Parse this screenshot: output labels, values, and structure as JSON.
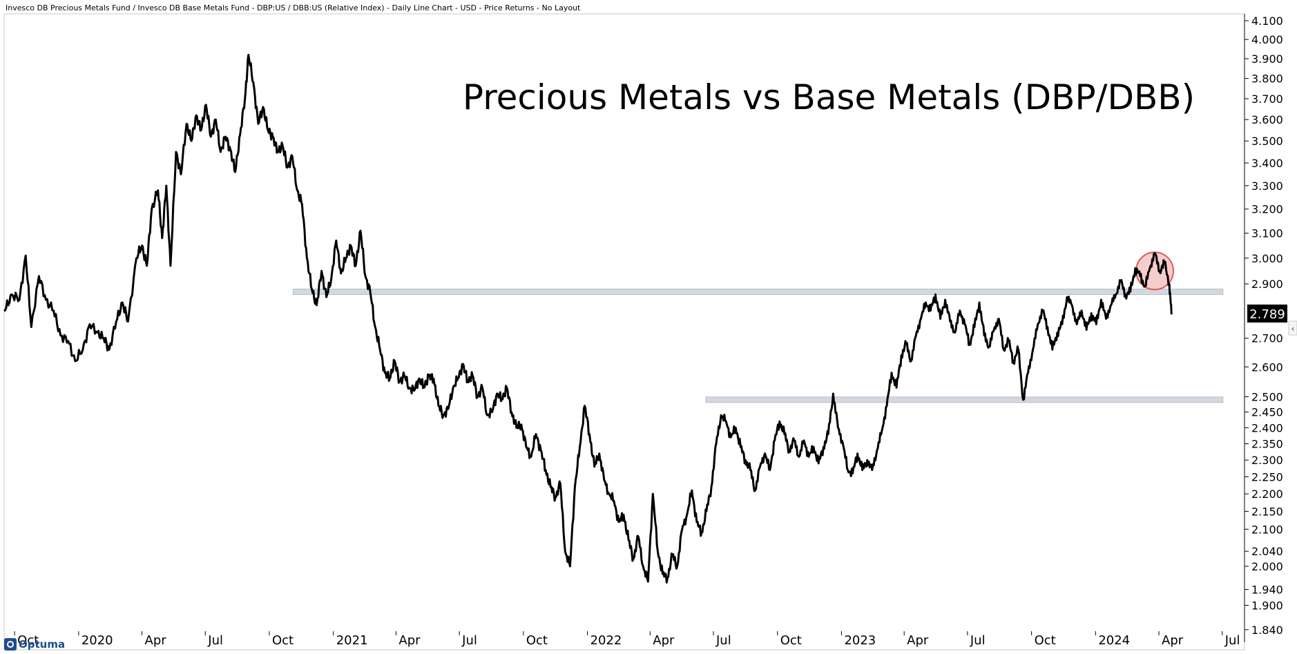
{
  "header": {
    "description": "Invesco DB Precious Metals Fund / Invesco DB Base Metals Fund - DBP:US / DBB:US (Relative Index) - Daily Line Chart - USD - Price Returns - No Layout"
  },
  "logo": {
    "text": "Optuma"
  },
  "chart_data": {
    "type": "line",
    "title": "Precious Metals vs Base Metals (DBP/DBB)",
    "xlabel": "",
    "ylabel": "",
    "yscale": "log",
    "ylim": [
      1.84,
      4.1
    ],
    "xlim": [
      "2019-09-16",
      "2024-07-31"
    ],
    "grid": false,
    "y_ticks": [
      "4.100",
      "4.000",
      "3.900",
      "3.800",
      "3.700",
      "3.600",
      "3.500",
      "3.400",
      "3.300",
      "3.200",
      "3.100",
      "3.000",
      "2.900",
      "2.700",
      "2.600",
      "2.500",
      "2.450",
      "2.400",
      "2.350",
      "2.300",
      "2.250",
      "2.200",
      "2.150",
      "2.100",
      "2.040",
      "2.000",
      "1.940",
      "1.900",
      "1.840"
    ],
    "x_ticks": [
      {
        "label": "Oct",
        "date": "2019-10-01"
      },
      {
        "label": "2020",
        "date": "2020-01-01"
      },
      {
        "label": "Apr",
        "date": "2020-04-01"
      },
      {
        "label": "Jul",
        "date": "2020-07-01"
      },
      {
        "label": "Oct",
        "date": "2020-10-01"
      },
      {
        "label": "2021",
        "date": "2021-01-01"
      },
      {
        "label": "Apr",
        "date": "2021-04-01"
      },
      {
        "label": "Jul",
        "date": "2021-07-01"
      },
      {
        "label": "Oct",
        "date": "2021-10-01"
      },
      {
        "label": "2022",
        "date": "2022-01-01"
      },
      {
        "label": "Apr",
        "date": "2022-04-01"
      },
      {
        "label": "Jul",
        "date": "2022-07-01"
      },
      {
        "label": "Oct",
        "date": "2022-10-01"
      },
      {
        "label": "2023",
        "date": "2023-01-01"
      },
      {
        "label": "Apr",
        "date": "2023-04-01"
      },
      {
        "label": "Jul",
        "date": "2023-07-01"
      },
      {
        "label": "Oct",
        "date": "2023-10-01"
      },
      {
        "label": "2024",
        "date": "2024-01-01"
      },
      {
        "label": "Apr",
        "date": "2024-04-01"
      },
      {
        "label": "Jul",
        "date": "2024-07-01"
      }
    ],
    "last_value_label": "2.789",
    "series": [
      {
        "color": "#000000",
        "points": [
          [
            "2019-09-17",
            2.8
          ],
          [
            "2019-09-27",
            2.86
          ],
          [
            "2019-10-08",
            2.84
          ],
          [
            "2019-10-17",
            3.01
          ],
          [
            "2019-10-25",
            2.74
          ],
          [
            "2019-11-05",
            2.93
          ],
          [
            "2019-11-15",
            2.84
          ],
          [
            "2019-11-26",
            2.8
          ],
          [
            "2019-12-06",
            2.71
          ],
          [
            "2019-12-17",
            2.69
          ],
          [
            "2019-12-27",
            2.62
          ],
          [
            "2020-01-07",
            2.66
          ],
          [
            "2020-01-17",
            2.75
          ],
          [
            "2020-01-28",
            2.72
          ],
          [
            "2020-02-06",
            2.7
          ],
          [
            "2020-02-14",
            2.66
          ],
          [
            "2020-02-24",
            2.76
          ],
          [
            "2020-03-04",
            2.83
          ],
          [
            "2020-03-12",
            2.76
          ],
          [
            "2020-03-24",
            3.0
          ],
          [
            "2020-04-01",
            3.05
          ],
          [
            "2020-04-08",
            2.97
          ],
          [
            "2020-04-15",
            3.2
          ],
          [
            "2020-04-24",
            3.28
          ],
          [
            "2020-04-30",
            3.08
          ],
          [
            "2020-05-06",
            3.3
          ],
          [
            "2020-05-12",
            2.97
          ],
          [
            "2020-05-20",
            3.45
          ],
          [
            "2020-05-27",
            3.35
          ],
          [
            "2020-06-04",
            3.58
          ],
          [
            "2020-06-11",
            3.5
          ],
          [
            "2020-06-18",
            3.62
          ],
          [
            "2020-06-25",
            3.55
          ],
          [
            "2020-07-02",
            3.67
          ],
          [
            "2020-07-09",
            3.52
          ],
          [
            "2020-07-16",
            3.6
          ],
          [
            "2020-07-23",
            3.45
          ],
          [
            "2020-07-30",
            3.52
          ],
          [
            "2020-08-06",
            3.46
          ],
          [
            "2020-08-13",
            3.36
          ],
          [
            "2020-08-20",
            3.53
          ],
          [
            "2020-08-27",
            3.7
          ],
          [
            "2020-09-01",
            3.92
          ],
          [
            "2020-09-08",
            3.78
          ],
          [
            "2020-09-15",
            3.58
          ],
          [
            "2020-09-22",
            3.66
          ],
          [
            "2020-09-29",
            3.55
          ],
          [
            "2020-10-06",
            3.52
          ],
          [
            "2020-10-13",
            3.45
          ],
          [
            "2020-10-20",
            3.48
          ],
          [
            "2020-10-27",
            3.38
          ],
          [
            "2020-11-03",
            3.43
          ],
          [
            "2020-11-10",
            3.28
          ],
          [
            "2020-11-17",
            3.22
          ],
          [
            "2020-11-24",
            3.0
          ],
          [
            "2020-12-01",
            2.88
          ],
          [
            "2020-12-08",
            2.82
          ],
          [
            "2020-12-15",
            2.95
          ],
          [
            "2020-12-22",
            2.85
          ],
          [
            "2020-12-29",
            2.92
          ],
          [
            "2021-01-05",
            3.07
          ],
          [
            "2021-01-12",
            2.94
          ],
          [
            "2021-01-19",
            3.0
          ],
          [
            "2021-01-26",
            3.05
          ],
          [
            "2021-02-02",
            2.97
          ],
          [
            "2021-02-09",
            3.11
          ],
          [
            "2021-02-16",
            2.93
          ],
          [
            "2021-02-23",
            2.87
          ],
          [
            "2021-03-02",
            2.74
          ],
          [
            "2021-03-09",
            2.66
          ],
          [
            "2021-03-16",
            2.58
          ],
          [
            "2021-03-23",
            2.56
          ],
          [
            "2021-03-30",
            2.62
          ],
          [
            "2021-04-06",
            2.55
          ],
          [
            "2021-04-13",
            2.57
          ],
          [
            "2021-04-20",
            2.53
          ],
          [
            "2021-04-27",
            2.52
          ],
          [
            "2021-05-04",
            2.56
          ],
          [
            "2021-05-11",
            2.53
          ],
          [
            "2021-05-18",
            2.57
          ],
          [
            "2021-05-25",
            2.56
          ],
          [
            "2021-06-01",
            2.47
          ],
          [
            "2021-06-08",
            2.44
          ],
          [
            "2021-06-15",
            2.46
          ],
          [
            "2021-06-22",
            2.53
          ],
          [
            "2021-06-29",
            2.56
          ],
          [
            "2021-07-06",
            2.61
          ],
          [
            "2021-07-13",
            2.55
          ],
          [
            "2021-07-20",
            2.57
          ],
          [
            "2021-07-27",
            2.5
          ],
          [
            "2021-08-03",
            2.53
          ],
          [
            "2021-08-10",
            2.44
          ],
          [
            "2021-08-17",
            2.45
          ],
          [
            "2021-08-24",
            2.51
          ],
          [
            "2021-08-31",
            2.49
          ],
          [
            "2021-09-07",
            2.53
          ],
          [
            "2021-09-14",
            2.45
          ],
          [
            "2021-09-21",
            2.4
          ],
          [
            "2021-09-28",
            2.41
          ],
          [
            "2021-10-05",
            2.34
          ],
          [
            "2021-10-12",
            2.31
          ],
          [
            "2021-10-19",
            2.38
          ],
          [
            "2021-10-26",
            2.33
          ],
          [
            "2021-11-02",
            2.27
          ],
          [
            "2021-11-09",
            2.22
          ],
          [
            "2021-11-16",
            2.19
          ],
          [
            "2021-11-23",
            2.23
          ],
          [
            "2021-11-30",
            2.04
          ],
          [
            "2021-12-07",
            2.0
          ],
          [
            "2021-12-14",
            2.22
          ],
          [
            "2021-12-21",
            2.34
          ],
          [
            "2021-12-28",
            2.47
          ],
          [
            "2022-01-04",
            2.38
          ],
          [
            "2022-01-11",
            2.28
          ],
          [
            "2022-01-18",
            2.32
          ],
          [
            "2022-01-25",
            2.24
          ],
          [
            "2022-02-01",
            2.2
          ],
          [
            "2022-02-08",
            2.18
          ],
          [
            "2022-02-15",
            2.12
          ],
          [
            "2022-02-22",
            2.14
          ],
          [
            "2022-03-01",
            2.07
          ],
          [
            "2022-03-08",
            2.02
          ],
          [
            "2022-03-15",
            2.08
          ],
          [
            "2022-03-22",
            2.0
          ],
          [
            "2022-03-29",
            1.96
          ],
          [
            "2022-04-05",
            2.2
          ],
          [
            "2022-04-12",
            2.04
          ],
          [
            "2022-04-19",
            1.98
          ],
          [
            "2022-04-26",
            1.97
          ],
          [
            "2022-05-03",
            2.03
          ],
          [
            "2022-05-10",
            2.0
          ],
          [
            "2022-05-17",
            2.1
          ],
          [
            "2022-05-24",
            2.14
          ],
          [
            "2022-05-31",
            2.21
          ],
          [
            "2022-06-07",
            2.12
          ],
          [
            "2022-06-14",
            2.09
          ],
          [
            "2022-06-21",
            2.15
          ],
          [
            "2022-06-28",
            2.22
          ],
          [
            "2022-07-05",
            2.35
          ],
          [
            "2022-07-12",
            2.44
          ],
          [
            "2022-07-19",
            2.42
          ],
          [
            "2022-07-26",
            2.37
          ],
          [
            "2022-08-02",
            2.4
          ],
          [
            "2022-08-09",
            2.34
          ],
          [
            "2022-08-16",
            2.3
          ],
          [
            "2022-08-23",
            2.27
          ],
          [
            "2022-08-30",
            2.21
          ],
          [
            "2022-09-06",
            2.28
          ],
          [
            "2022-09-13",
            2.32
          ],
          [
            "2022-09-20",
            2.27
          ],
          [
            "2022-09-27",
            2.36
          ],
          [
            "2022-10-04",
            2.42
          ],
          [
            "2022-10-11",
            2.38
          ],
          [
            "2022-10-18",
            2.33
          ],
          [
            "2022-10-25",
            2.36
          ],
          [
            "2022-11-01",
            2.31
          ],
          [
            "2022-11-08",
            2.36
          ],
          [
            "2022-11-15",
            2.31
          ],
          [
            "2022-11-22",
            2.34
          ],
          [
            "2022-11-29",
            2.29
          ],
          [
            "2022-12-06",
            2.34
          ],
          [
            "2022-12-13",
            2.38
          ],
          [
            "2022-12-20",
            2.51
          ],
          [
            "2022-12-27",
            2.4
          ],
          [
            "2023-01-03",
            2.35
          ],
          [
            "2023-01-10",
            2.27
          ],
          [
            "2023-01-17",
            2.26
          ],
          [
            "2023-01-24",
            2.32
          ],
          [
            "2023-01-31",
            2.27
          ],
          [
            "2023-02-07",
            2.3
          ],
          [
            "2023-02-14",
            2.27
          ],
          [
            "2023-02-21",
            2.33
          ],
          [
            "2023-02-28",
            2.39
          ],
          [
            "2023-03-07",
            2.47
          ],
          [
            "2023-03-14",
            2.58
          ],
          [
            "2023-03-21",
            2.53
          ],
          [
            "2023-03-28",
            2.64
          ],
          [
            "2023-04-04",
            2.68
          ],
          [
            "2023-04-11",
            2.62
          ],
          [
            "2023-04-18",
            2.71
          ],
          [
            "2023-04-25",
            2.77
          ],
          [
            "2023-05-02",
            2.83
          ],
          [
            "2023-05-09",
            2.8
          ],
          [
            "2023-05-16",
            2.86
          ],
          [
            "2023-05-23",
            2.77
          ],
          [
            "2023-05-30",
            2.84
          ],
          [
            "2023-06-06",
            2.76
          ],
          [
            "2023-06-13",
            2.72
          ],
          [
            "2023-06-20",
            2.8
          ],
          [
            "2023-06-27",
            2.75
          ],
          [
            "2023-07-04",
            2.68
          ],
          [
            "2023-07-11",
            2.74
          ],
          [
            "2023-07-18",
            2.83
          ],
          [
            "2023-07-25",
            2.71
          ],
          [
            "2023-08-01",
            2.67
          ],
          [
            "2023-08-08",
            2.73
          ],
          [
            "2023-08-15",
            2.77
          ],
          [
            "2023-08-22",
            2.66
          ],
          [
            "2023-08-29",
            2.69
          ],
          [
            "2023-09-05",
            2.62
          ],
          [
            "2023-09-12",
            2.66
          ],
          [
            "2023-09-19",
            2.49
          ],
          [
            "2023-09-26",
            2.58
          ],
          [
            "2023-10-03",
            2.66
          ],
          [
            "2023-10-10",
            2.75
          ],
          [
            "2023-10-17",
            2.8
          ],
          [
            "2023-10-24",
            2.74
          ],
          [
            "2023-10-31",
            2.66
          ],
          [
            "2023-11-07",
            2.72
          ],
          [
            "2023-11-14",
            2.75
          ],
          [
            "2023-11-21",
            2.85
          ],
          [
            "2023-11-28",
            2.82
          ],
          [
            "2023-12-05",
            2.75
          ],
          [
            "2023-12-12",
            2.8
          ],
          [
            "2023-12-19",
            2.73
          ],
          [
            "2023-12-26",
            2.79
          ],
          [
            "2024-01-02",
            2.75
          ],
          [
            "2024-01-09",
            2.84
          ],
          [
            "2024-01-16",
            2.77
          ],
          [
            "2024-01-23",
            2.82
          ],
          [
            "2024-01-30",
            2.86
          ],
          [
            "2024-02-06",
            2.91
          ],
          [
            "2024-02-13",
            2.86
          ],
          [
            "2024-02-20",
            2.87
          ],
          [
            "2024-02-27",
            2.96
          ],
          [
            "2024-03-05",
            2.93
          ],
          [
            "2024-03-12",
            2.89
          ],
          [
            "2024-03-19",
            2.96
          ],
          [
            "2024-03-26",
            3.02
          ],
          [
            "2024-04-02",
            2.95
          ],
          [
            "2024-04-09",
            2.98
          ],
          [
            "2024-04-16",
            2.9
          ],
          [
            "2024-04-19",
            2.789
          ]
        ]
      }
    ],
    "annotations": {
      "support_resistance_bands": [
        {
          "value": 2.87,
          "from": "2020-11-04",
          "to": "2024-07-02",
          "color": "#d3d8df"
        },
        {
          "value": 2.49,
          "from": "2022-06-20",
          "to": "2024-07-02",
          "color": "#d3d8df"
        }
      ],
      "highlight_circle": {
        "date": "2024-03-26",
        "value": 2.95,
        "color": "#e05a5a"
      }
    }
  }
}
